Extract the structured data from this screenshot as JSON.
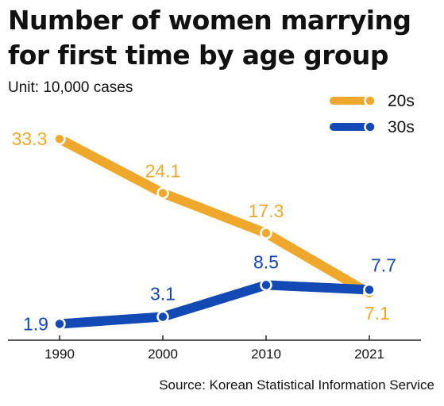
{
  "title": "Number of women marrying for first time by age group",
  "unit": "Unit: 10,000 cases",
  "source": "Source: Korean Statistical Information Service",
  "colors": {
    "series_20s": "#f0a82c",
    "series_30s": "#1249b5",
    "axis": "#222222"
  },
  "chart_data": {
    "type": "line",
    "categories": [
      "1990",
      "2000",
      "2010",
      "2021"
    ],
    "series": [
      {
        "name": "20s",
        "values": [
          33.3,
          24.1,
          17.3,
          7.1
        ],
        "labels": [
          "33.3",
          "24.1",
          "17.3",
          "7.1"
        ]
      },
      {
        "name": "30s",
        "values": [
          1.9,
          3.1,
          8.5,
          7.7
        ],
        "labels": [
          "1.9",
          "3.1",
          "8.5",
          "7.7"
        ]
      }
    ],
    "ylim": [
      -1,
      34
    ],
    "grid": false,
    "legend": "top-right"
  }
}
